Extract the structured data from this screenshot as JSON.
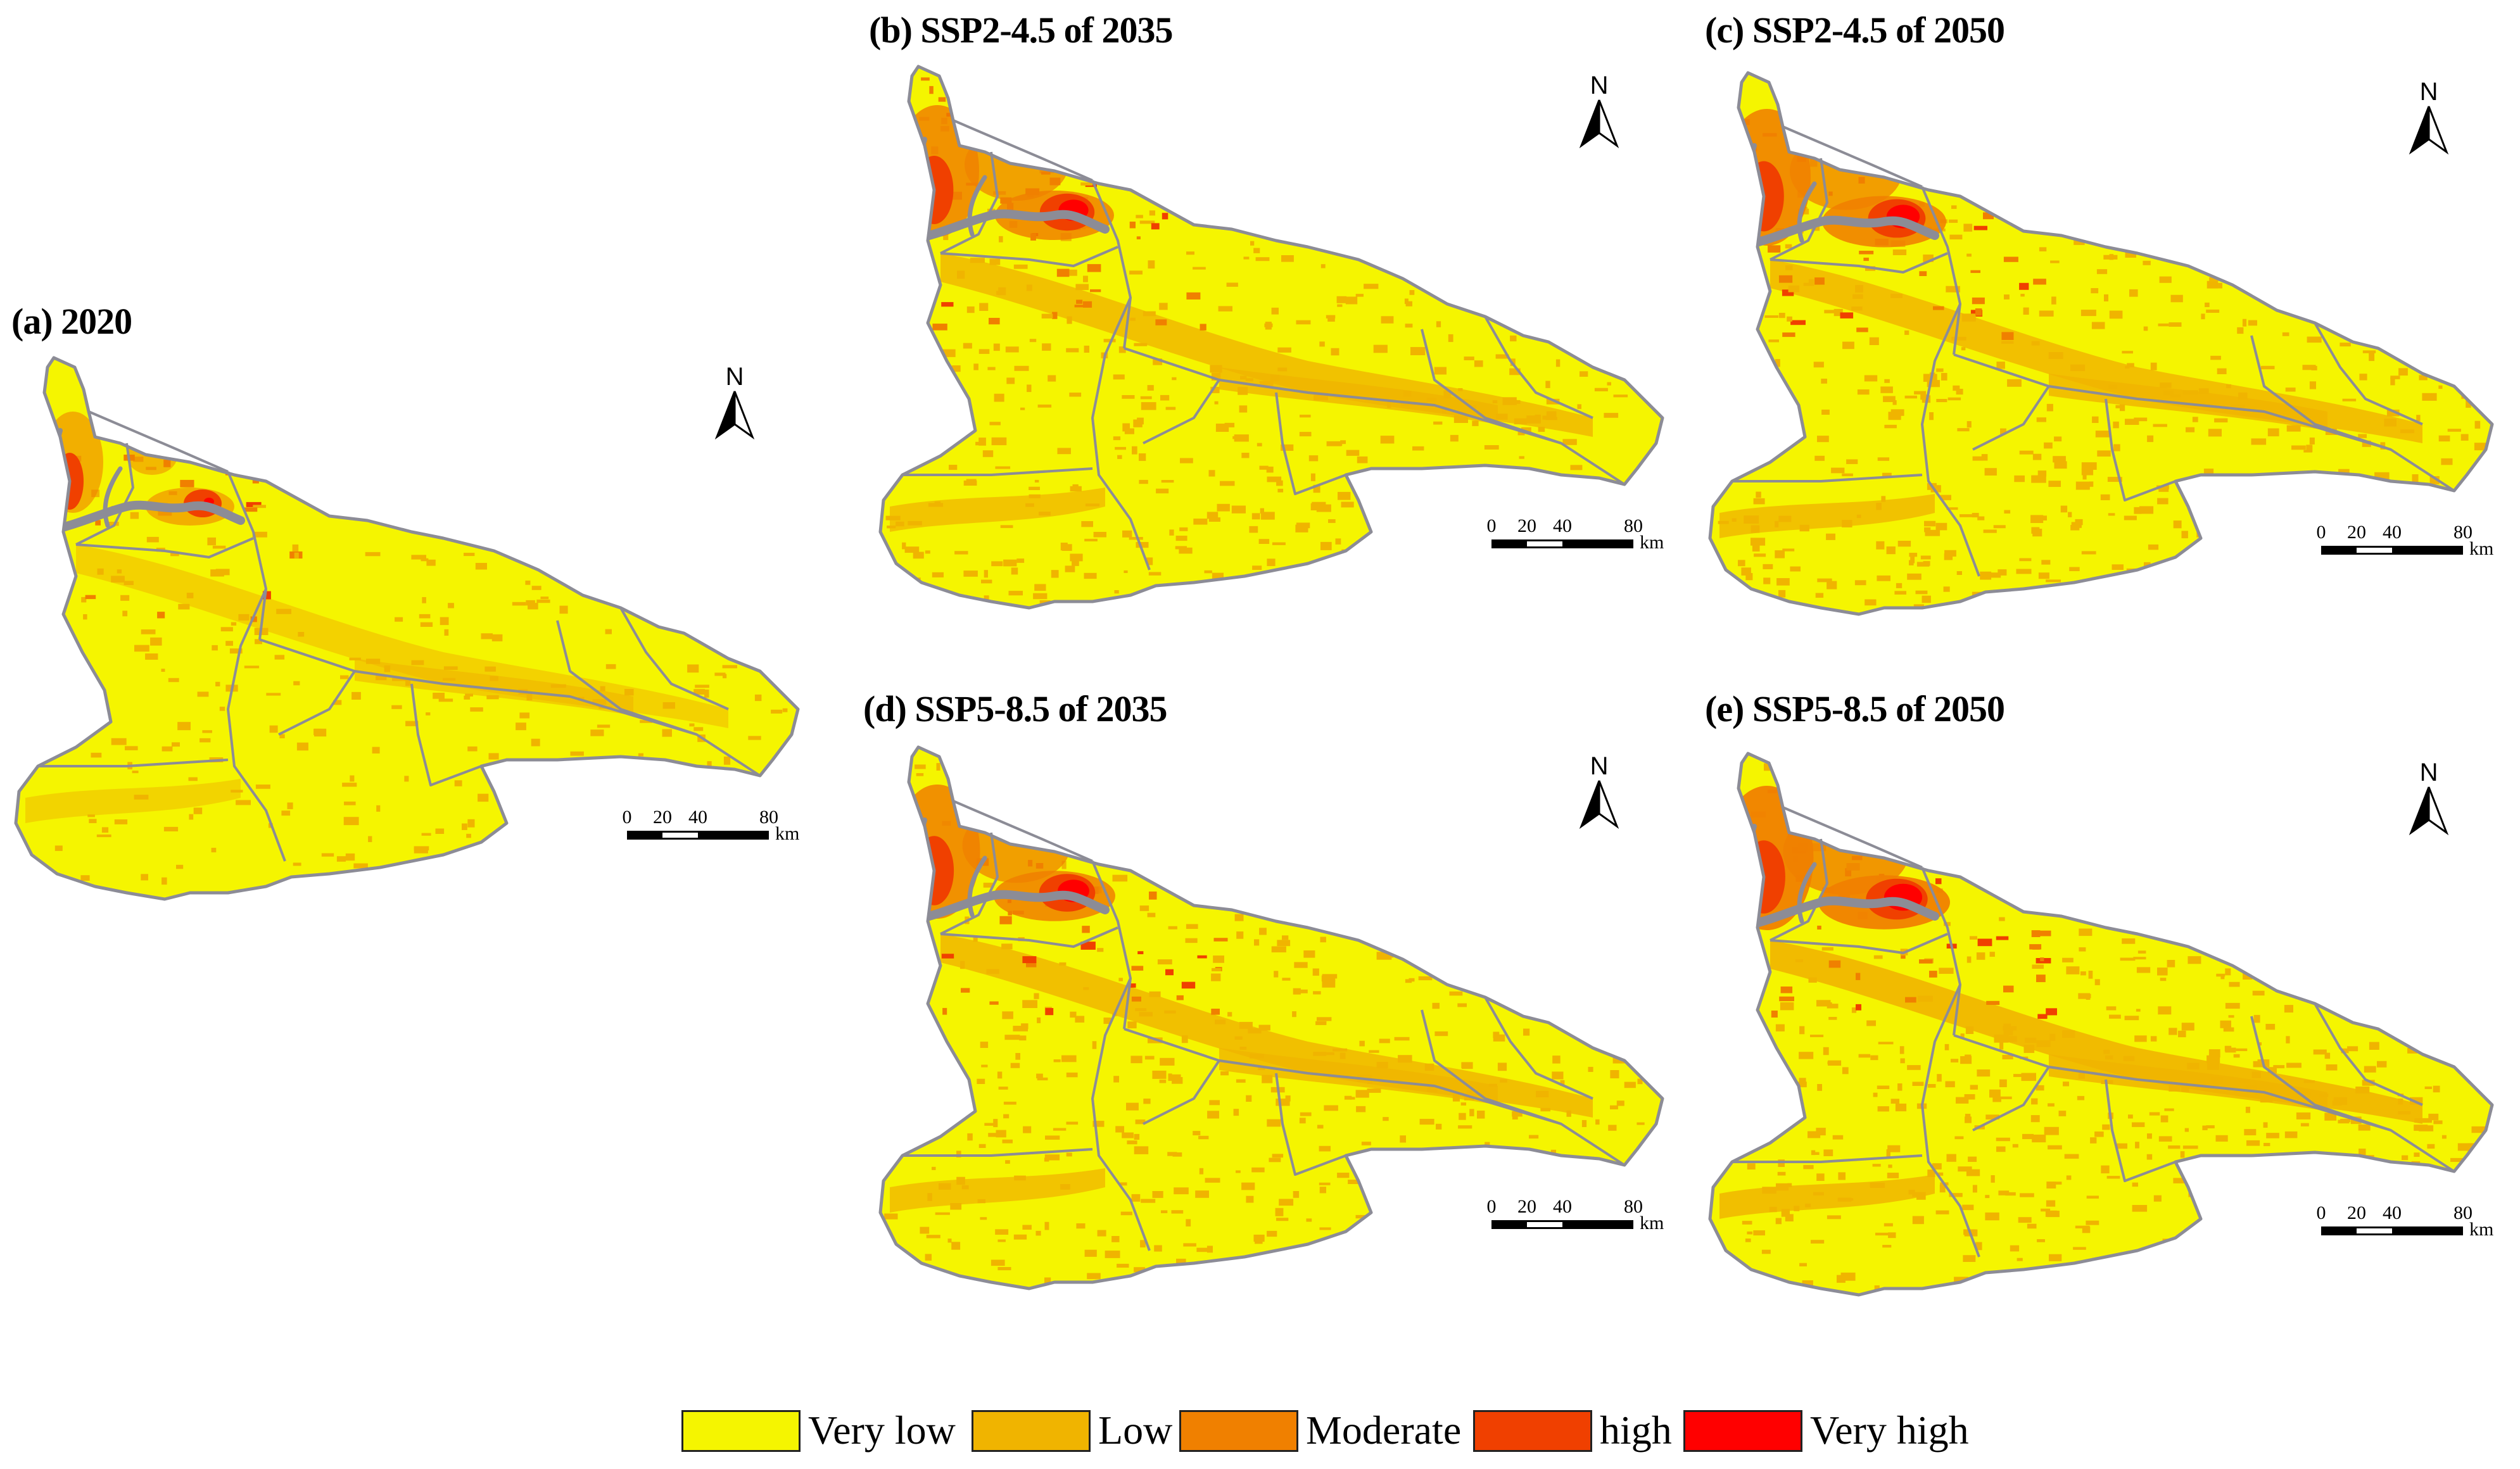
{
  "palette": {
    "very_low": "#F5F500",
    "low": "#F0B400",
    "moderate": "#F08000",
    "high": "#F04000",
    "very_high": "#FF0000",
    "boundary": "#8C8C96"
  },
  "panels": [
    {
      "id": "a",
      "title": "(a) 2020",
      "intensity": 0.0
    },
    {
      "id": "b",
      "title": "(b) SSP2-4.5 of 2035",
      "intensity": 0.6
    },
    {
      "id": "c",
      "title": "(c) SSP2-4.5 of 2050",
      "intensity": 0.7
    },
    {
      "id": "d",
      "title": "(d) SSP5-8.5 of 2035",
      "intensity": 0.65
    },
    {
      "id": "e",
      "title": "(e) SSP5-8.5 of 2050",
      "intensity": 0.85
    }
  ],
  "north_arrow": {
    "label": "N"
  },
  "scale_bar": {
    "ticks": [
      "0",
      "20",
      "40",
      "80"
    ],
    "unit": "km"
  },
  "legend": [
    {
      "label": "Very low",
      "color": "#F5F500"
    },
    {
      "label": "Low",
      "color": "#F0B400"
    },
    {
      "label": "Moderate",
      "color": "#F08000"
    },
    {
      "label": "high",
      "color": "#F04000"
    },
    {
      "label": "Very high",
      "color": "#FF0000"
    }
  ]
}
